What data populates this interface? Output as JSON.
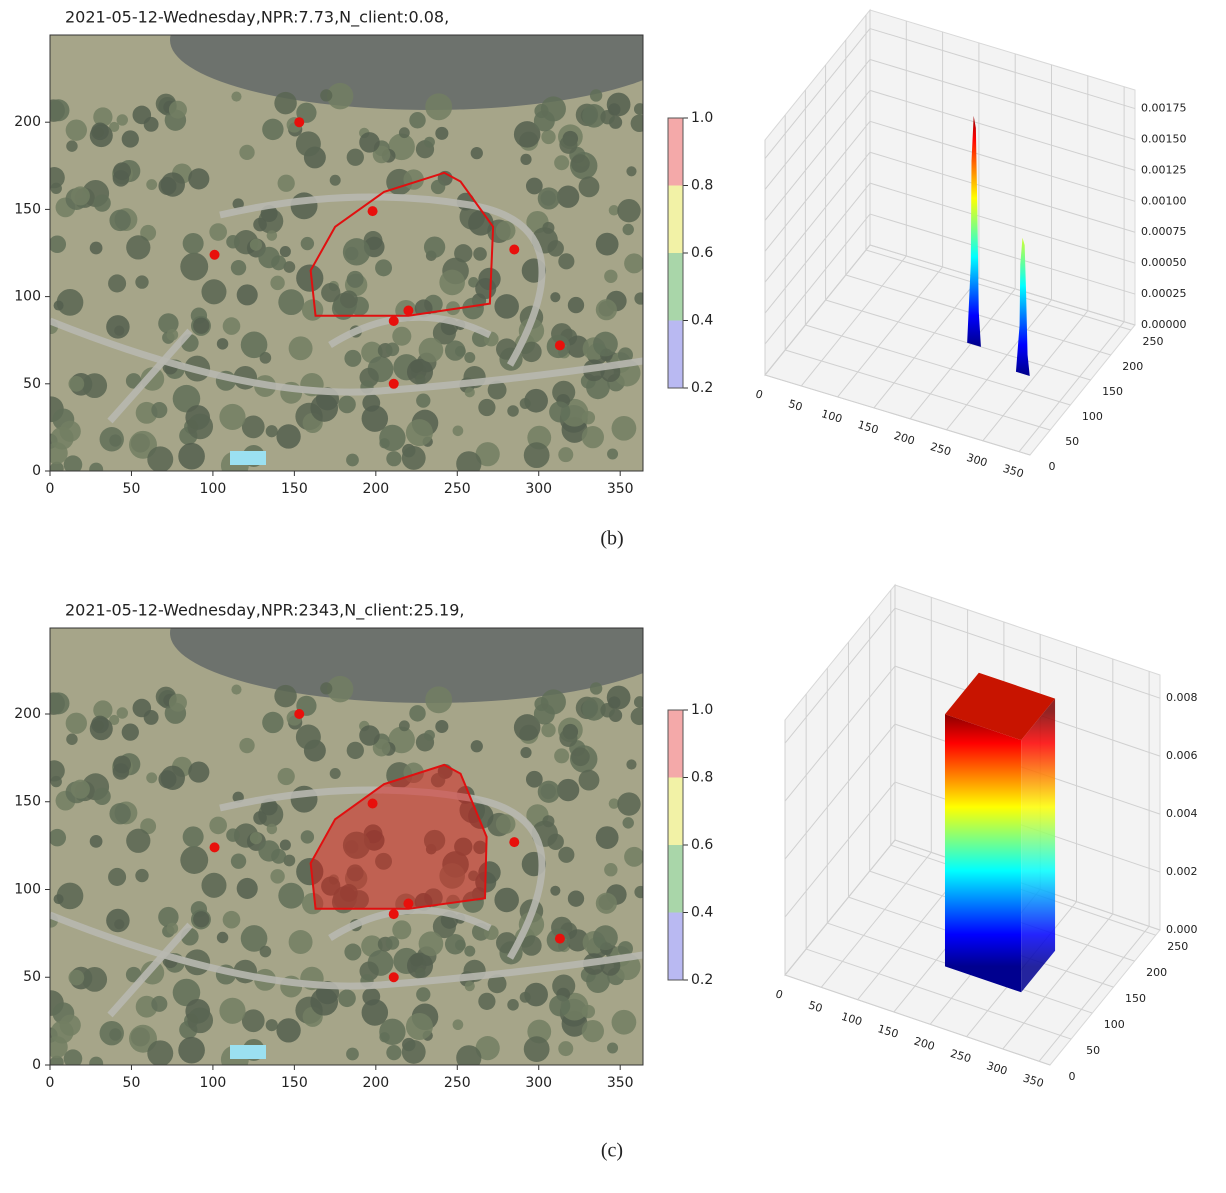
{
  "panel_labels": [
    "(b)",
    "(c)"
  ],
  "chart_data": [
    {
      "type": "scatter",
      "title": "2021-05-12-Wednesday,NPR:7.73,N_client:0.08,",
      "x": [
        153,
        198,
        101,
        285,
        220,
        211,
        313,
        211
      ],
      "y": [
        200,
        149,
        124,
        127,
        92,
        86,
        72,
        50
      ],
      "color": "#e8100c",
      "polygon": {
        "x": [
          163,
          160,
          175,
          205,
          242,
          252,
          272,
          270,
          220
        ],
        "y": [
          89,
          115,
          140,
          160,
          171,
          166,
          140,
          96,
          89
        ],
        "color": "#e01010",
        "fill": false
      },
      "xlim": [
        0,
        364
      ],
      "ylim": [
        0,
        250
      ],
      "xticks": [
        0,
        50,
        100,
        150,
        200,
        250,
        300,
        350
      ],
      "yticks": [
        0,
        50,
        100,
        150,
        200
      ],
      "colorbar": {
        "lim": [
          0.2,
          1
        ],
        "ticks": [
          0.2,
          0.4,
          0.6,
          0.8,
          {
            "value": 1,
            "label": "1.0"
          }
        ],
        "colors": [
          "#b9b9f2",
          "#a9d6a9",
          "#f2f2a6",
          "#f4a9a9"
        ]
      }
    },
    {
      "type": "surface3d",
      "xlim": [
        0,
        365
      ],
      "ylim": [
        0,
        260
      ],
      "zlim": [
        0,
        0.0019
      ],
      "xticks": [
        0,
        50,
        100,
        150,
        200,
        250,
        300,
        350
      ],
      "yticks": [
        0,
        50,
        100,
        150,
        200,
        250
      ],
      "zticks": [
        {
          "value": 0,
          "label": "0.00000"
        },
        0.00025,
        {
          "value": 0.0005,
          "label": "0.00050"
        },
        0.00075,
        {
          "value": 0.001,
          "label": "0.00100"
        },
        0.00125,
        {
          "value": 0.0015,
          "label": "0.00150"
        },
        0.00175
      ],
      "peaks": {
        "x": [
          205,
          285
        ],
        "y": [
          150,
          127
        ],
        "z": [
          0.00185,
          0.0011
        ]
      },
      "colormap": "jet"
    },
    {
      "type": "scatter",
      "title": "2021-05-12-Wednesday,NPR:2343,N_client:25.19,",
      "x": [
        153,
        198,
        101,
        285,
        220,
        211,
        313,
        211
      ],
      "y": [
        200,
        149,
        124,
        127,
        92,
        86,
        72,
        50
      ],
      "color": "#e8100c",
      "polygon": {
        "x": [
          163,
          160,
          175,
          205,
          242,
          252,
          268,
          267,
          220
        ],
        "y": [
          89,
          115,
          140,
          160,
          171,
          166,
          130,
          95,
          89
        ],
        "color": "#e01010",
        "fill": true
      },
      "xlim": [
        0,
        364
      ],
      "ylim": [
        0,
        249
      ],
      "xticks": [
        0,
        50,
        100,
        150,
        200,
        250,
        300,
        350
      ],
      "yticks": [
        0,
        50,
        100,
        150,
        200
      ],
      "colorbar": {
        "lim": [
          0.2,
          1
        ],
        "ticks": [
          0.2,
          0.4,
          0.6,
          0.8,
          {
            "value": 1,
            "label": "1.0"
          }
        ],
        "colors": [
          "#b9b9f2",
          "#a9d6a9",
          "#f2f2a6",
          "#f4a9a9"
        ]
      }
    },
    {
      "type": "surface3d",
      "xlim": [
        0,
        365
      ],
      "ylim": [
        0,
        260
      ],
      "zlim": [
        0,
        0.0088
      ],
      "xticks": [
        0,
        50,
        100,
        150,
        200,
        250,
        300,
        350
      ],
      "yticks": [
        0,
        50,
        100,
        150,
        200,
        250
      ],
      "zticks": [
        {
          "value": 0,
          "label": "0.000"
        },
        0.002,
        0.004,
        0.006,
        0.008
      ],
      "block": {
        "x": [
          165,
          270
        ],
        "y": [
          95,
          175
        ],
        "z": 0.0087
      },
      "colormap": "jet"
    }
  ]
}
